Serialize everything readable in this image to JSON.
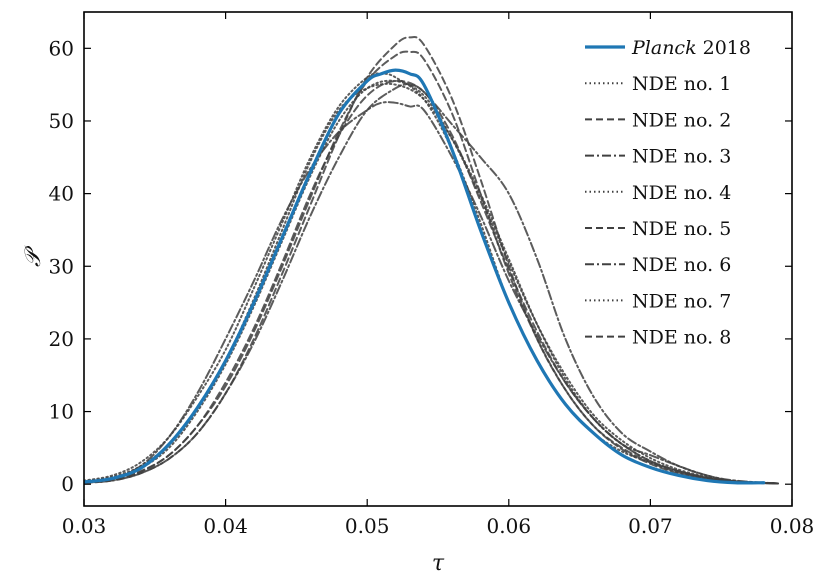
{
  "chart_data": {
    "type": "line",
    "xlabel": "τ",
    "ylabel": "𝒫",
    "xlim": [
      0.03,
      0.08
    ],
    "ylim": [
      -3,
      65
    ],
    "x_ticks": [
      0.03,
      0.04,
      0.05,
      0.06,
      0.07,
      0.08
    ],
    "x_tick_labels": [
      "0.03",
      "0.04",
      "0.05",
      "0.06",
      "0.07",
      "0.08"
    ],
    "y_ticks": [
      0,
      10,
      20,
      30,
      40,
      50,
      60
    ],
    "y_tick_labels": [
      "0",
      "10",
      "20",
      "30",
      "40",
      "50",
      "60"
    ],
    "legend_position": "top-right",
    "grid": false,
    "planck_color": "#1f77b4",
    "nde_color": "#404040",
    "series": [
      {
        "name": "Planck 2018",
        "name_italic_part": "Planck",
        "name_rest": " 2018",
        "style": "solid",
        "color": "#1f77b4",
        "x": [
          0.03,
          0.032,
          0.034,
          0.036,
          0.038,
          0.04,
          0.042,
          0.044,
          0.046,
          0.048,
          0.05,
          0.051,
          0.052,
          0.053,
          0.054,
          0.056,
          0.058,
          0.06,
          0.062,
          0.064,
          0.066,
          0.068,
          0.07,
          0.072,
          0.074,
          0.076,
          0.078
        ],
        "y": [
          0.3,
          0.8,
          2.2,
          5.5,
          10.5,
          17,
          25,
          34,
          43,
          51,
          55.5,
          56.5,
          57,
          56.5,
          55,
          46,
          35,
          25,
          17,
          11,
          7,
          4,
          2.3,
          1.2,
          0.5,
          0.2,
          0.2
        ]
      },
      {
        "name": "NDE no. 1",
        "style": "dotted",
        "color": "#404040",
        "x": [
          0.03,
          0.032,
          0.034,
          0.036,
          0.038,
          0.04,
          0.042,
          0.044,
          0.046,
          0.048,
          0.05,
          0.051,
          0.052,
          0.054,
          0.056,
          0.058,
          0.06,
          0.062,
          0.064,
          0.066,
          0.068,
          0.07,
          0.072,
          0.074,
          0.076,
          0.079
        ],
        "y": [
          0.5,
          1.2,
          3,
          6.5,
          12,
          18.5,
          27,
          36,
          45,
          52,
          56,
          56.5,
          56,
          53,
          46,
          36,
          25,
          17,
          11,
          7,
          4.5,
          3,
          1.8,
          0.8,
          0.3,
          0.1
        ]
      },
      {
        "name": "NDE no. 2",
        "style": "dashed",
        "color": "#404040",
        "x": [
          0.03,
          0.032,
          0.034,
          0.036,
          0.038,
          0.04,
          0.042,
          0.044,
          0.046,
          0.048,
          0.05,
          0.052,
          0.053,
          0.054,
          0.056,
          0.058,
          0.06,
          0.062,
          0.064,
          0.066,
          0.068,
          0.07,
          0.072,
          0.074,
          0.076,
          0.079
        ],
        "y": [
          0.2,
          0.5,
          1.5,
          3.5,
          7,
          12.5,
          20,
          29,
          38.5,
          48,
          56,
          60.5,
          61.5,
          60.5,
          53,
          42,
          30,
          20,
          13,
          8,
          4.8,
          2.8,
          1.5,
          0.7,
          0.3,
          0.1
        ]
      },
      {
        "name": "NDE no. 3",
        "style": "dashdot",
        "color": "#404040",
        "x": [
          0.03,
          0.032,
          0.034,
          0.036,
          0.038,
          0.04,
          0.042,
          0.044,
          0.046,
          0.048,
          0.05,
          0.052,
          0.053,
          0.054,
          0.056,
          0.058,
          0.06,
          0.062,
          0.064,
          0.066,
          0.068,
          0.07,
          0.072,
          0.074,
          0.076,
          0.079
        ],
        "y": [
          0.2,
          0.5,
          1.5,
          3.5,
          7,
          12.5,
          19.5,
          28,
          37,
          45,
          51.5,
          54.5,
          55,
          54,
          49.5,
          45,
          40,
          31,
          20,
          12,
          7,
          4.5,
          2.5,
          1.2,
          0.5,
          0.1
        ]
      },
      {
        "name": "NDE no. 4",
        "style": "dotted",
        "color": "#404040",
        "x": [
          0.03,
          0.032,
          0.034,
          0.036,
          0.038,
          0.04,
          0.042,
          0.044,
          0.046,
          0.048,
          0.05,
          0.052,
          0.054,
          0.056,
          0.058,
          0.06,
          0.062,
          0.064,
          0.066,
          0.068,
          0.07,
          0.072,
          0.074,
          0.076,
          0.079
        ],
        "y": [
          0.4,
          1.0,
          2.5,
          5.5,
          10.5,
          17,
          25.5,
          35,
          44.5,
          51.5,
          54.5,
          55,
          53,
          47.5,
          40,
          31,
          22,
          14.5,
          9,
          5.5,
          3.2,
          1.8,
          0.9,
          0.4,
          0.1
        ]
      },
      {
        "name": "NDE no. 5",
        "style": "dashed",
        "color": "#404040",
        "x": [
          0.03,
          0.032,
          0.034,
          0.036,
          0.038,
          0.04,
          0.042,
          0.044,
          0.046,
          0.048,
          0.05,
          0.052,
          0.053,
          0.054,
          0.056,
          0.058,
          0.06,
          0.062,
          0.064,
          0.066,
          0.068,
          0.07,
          0.072,
          0.074,
          0.076,
          0.079
        ],
        "y": [
          0.3,
          0.7,
          1.8,
          4,
          8,
          13.5,
          21,
          30,
          39.5,
          48.5,
          55.5,
          59,
          59.5,
          58.5,
          51,
          40,
          29,
          20,
          13,
          8,
          5,
          3,
          1.6,
          0.8,
          0.3,
          0.1
        ]
      },
      {
        "name": "NDE no. 6",
        "style": "dashdot",
        "color": "#404040",
        "x": [
          0.03,
          0.032,
          0.034,
          0.036,
          0.038,
          0.04,
          0.042,
          0.044,
          0.046,
          0.048,
          0.05,
          0.051,
          0.052,
          0.053,
          0.054,
          0.056,
          0.058,
          0.06,
          0.062,
          0.064,
          0.066,
          0.068,
          0.07,
          0.072,
          0.074,
          0.076,
          0.079
        ],
        "y": [
          0.3,
          0.8,
          2.5,
          6.5,
          12.5,
          20,
          28,
          36.5,
          43.5,
          48.5,
          51.5,
          52.5,
          52.5,
          52,
          51.5,
          45,
          37,
          28,
          20.5,
          14,
          9,
          5.5,
          4,
          2.5,
          1.2,
          0.4,
          0.1
        ]
      },
      {
        "name": "NDE no. 7",
        "style": "dotted",
        "color": "#404040",
        "x": [
          0.03,
          0.032,
          0.034,
          0.036,
          0.038,
          0.04,
          0.042,
          0.044,
          0.046,
          0.048,
          0.05,
          0.052,
          0.054,
          0.056,
          0.058,
          0.06,
          0.062,
          0.064,
          0.066,
          0.068,
          0.07,
          0.072,
          0.074,
          0.076,
          0.079
        ],
        "y": [
          0.3,
          0.8,
          2.2,
          5,
          10,
          16.5,
          24.5,
          33.5,
          42.5,
          50,
          54.5,
          55.5,
          53.5,
          47.5,
          39.5,
          30.5,
          22,
          15,
          9.5,
          6,
          3.6,
          2,
          1,
          0.4,
          0.1
        ]
      },
      {
        "name": "NDE no. 8",
        "style": "dashed",
        "color": "#404040",
        "x": [
          0.03,
          0.032,
          0.034,
          0.036,
          0.038,
          0.04,
          0.042,
          0.044,
          0.046,
          0.048,
          0.05,
          0.052,
          0.054,
          0.056,
          0.058,
          0.06,
          0.062,
          0.064,
          0.066,
          0.068,
          0.07,
          0.072,
          0.074,
          0.076,
          0.079
        ],
        "y": [
          0.2,
          0.6,
          1.7,
          4,
          8,
          14,
          21.5,
          30.5,
          40,
          48,
          53.5,
          55.5,
          54,
          48,
          39,
          29.5,
          21,
          14,
          9,
          5.5,
          3.2,
          1.8,
          0.9,
          0.4,
          0.1
        ]
      }
    ]
  }
}
